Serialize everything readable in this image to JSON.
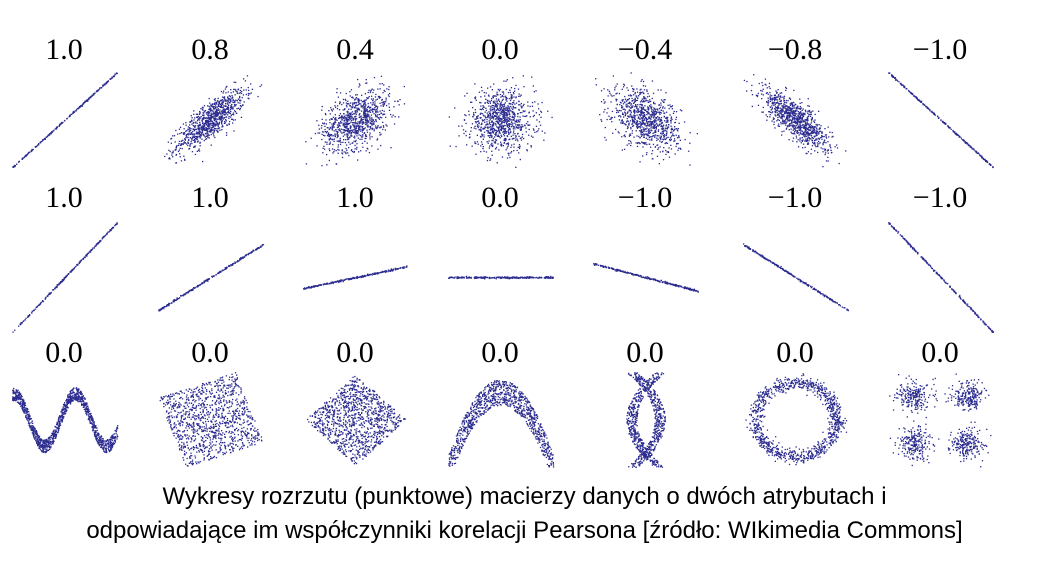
{
  "chart_data": {
    "type": "scatter",
    "colors": {
      "points": "#2b2b8f"
    },
    "panels": [
      {
        "row": 0,
        "col": 0,
        "label": "1.0",
        "kind": "line",
        "r": 1.0,
        "slope": 1.0,
        "noise": 0
      },
      {
        "row": 0,
        "col": 1,
        "label": "0.8",
        "kind": "gauss",
        "r": 0.8
      },
      {
        "row": 0,
        "col": 2,
        "label": "0.4",
        "kind": "gauss",
        "r": 0.4
      },
      {
        "row": 0,
        "col": 3,
        "label": "0.0",
        "kind": "gauss",
        "r": 0.0
      },
      {
        "row": 0,
        "col": 4,
        "label": "−0.4",
        "kind": "gauss",
        "r": -0.4
      },
      {
        "row": 0,
        "col": 5,
        "label": "−0.8",
        "kind": "gauss",
        "r": -0.8
      },
      {
        "row": 0,
        "col": 6,
        "label": "−1.0",
        "kind": "line",
        "r": -1.0,
        "slope": -1.0,
        "noise": 0
      },
      {
        "row": 1,
        "col": 0,
        "label": "1.0",
        "kind": "line",
        "r": 1.0,
        "slope": 1.0
      },
      {
        "row": 1,
        "col": 1,
        "label": "1.0",
        "kind": "line",
        "r": 1.0,
        "slope": 0.6
      },
      {
        "row": 1,
        "col": 2,
        "label": "1.0",
        "kind": "line",
        "r": 1.0,
        "slope": 0.2
      },
      {
        "row": 1,
        "col": 3,
        "label": "0.0",
        "kind": "line",
        "r": 0.0,
        "slope": 0.0
      },
      {
        "row": 1,
        "col": 4,
        "label": "−1.0",
        "kind": "line",
        "r": -1.0,
        "slope": -0.25
      },
      {
        "row": 1,
        "col": 5,
        "label": "−1.0",
        "kind": "line",
        "r": -1.0,
        "slope": -0.6
      },
      {
        "row": 1,
        "col": 6,
        "label": "−1.0",
        "kind": "line",
        "r": -1.0,
        "slope": -1.0
      },
      {
        "row": 2,
        "col": 0,
        "label": "0.0",
        "kind": "wave",
        "r": 0.0
      },
      {
        "row": 2,
        "col": 1,
        "label": "0.0",
        "kind": "rotated-square",
        "r": 0.0,
        "angle": 20
      },
      {
        "row": 2,
        "col": 2,
        "label": "0.0",
        "kind": "rotated-square",
        "r": 0.0,
        "angle": 45
      },
      {
        "row": 2,
        "col": 3,
        "label": "0.0",
        "kind": "parabola",
        "r": 0.0
      },
      {
        "row": 2,
        "col": 4,
        "label": "0.0",
        "kind": "x-shape",
        "r": 0.0
      },
      {
        "row": 2,
        "col": 5,
        "label": "0.0",
        "kind": "ring",
        "r": 0.0
      },
      {
        "row": 2,
        "col": 6,
        "label": "0.0",
        "kind": "four-clusters",
        "r": 0.0
      }
    ]
  },
  "caption": {
    "line1": "Wykresy rozrzutu (punktowe) macierzy danych o dwóch atrybutach i",
    "line2": "odpowiadające im współczynniki korelacji Pearsona [źródło: WIkimedia Commons]"
  }
}
